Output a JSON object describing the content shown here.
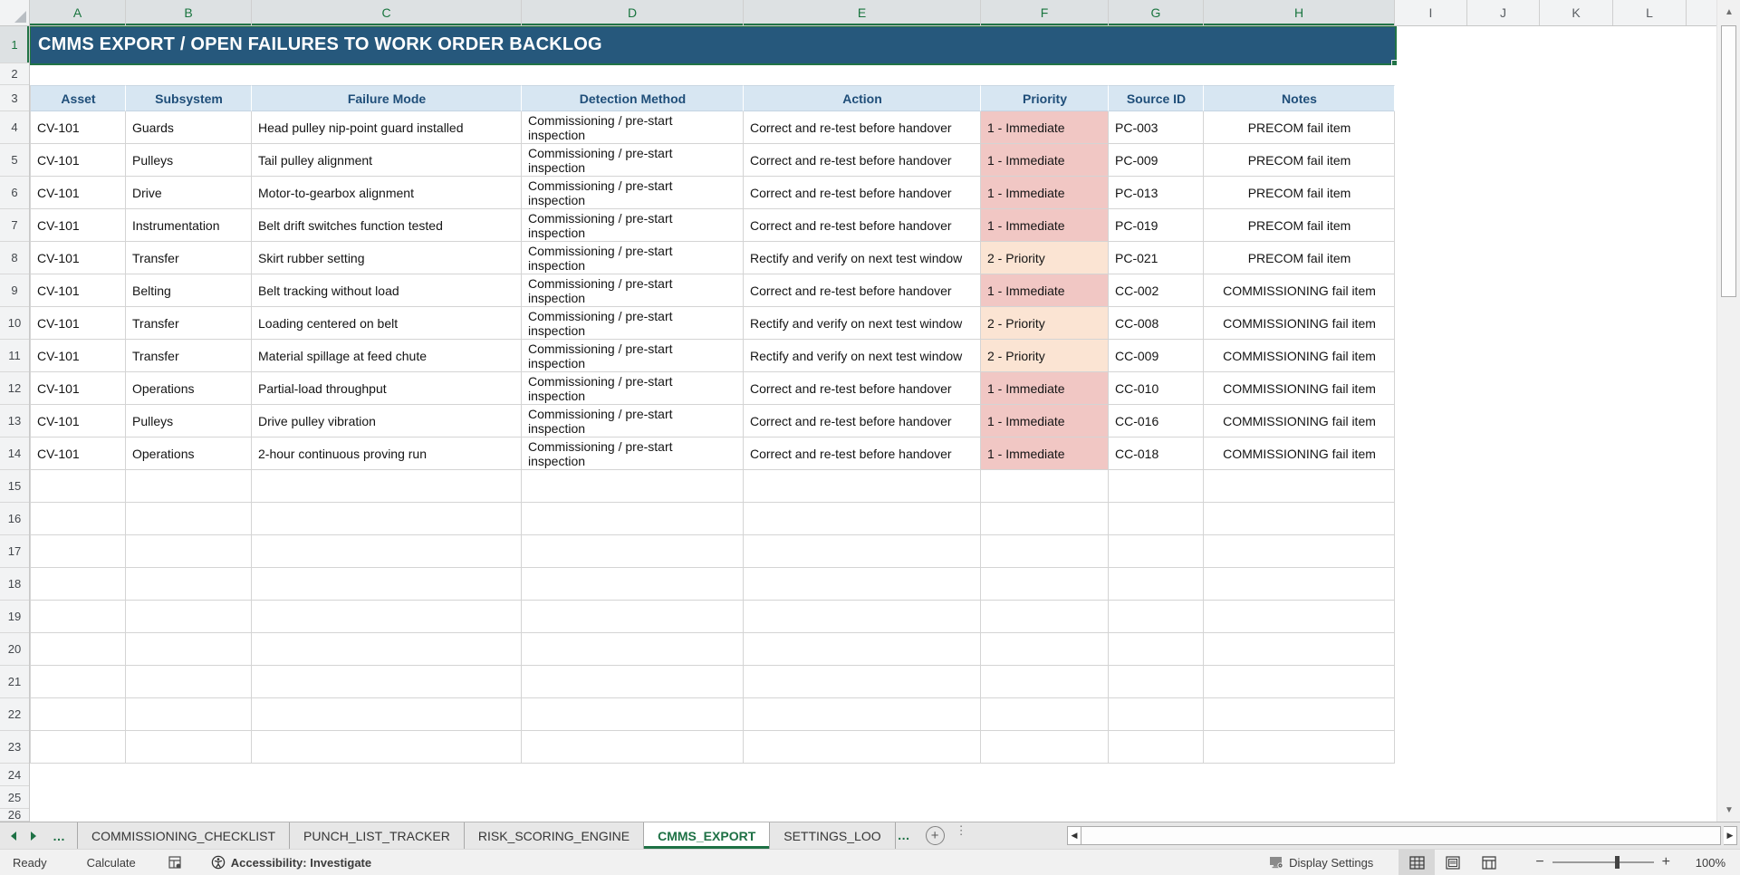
{
  "sheet": {
    "title_cell": "CMMS EXPORT / OPEN FAILURES TO WORK ORDER BACKLOG",
    "columns": [
      {
        "letter": "A",
        "selected": true
      },
      {
        "letter": "B",
        "selected": true
      },
      {
        "letter": "C",
        "selected": true
      },
      {
        "letter": "D",
        "selected": true
      },
      {
        "letter": "E",
        "selected": true
      },
      {
        "letter": "F",
        "selected": true
      },
      {
        "letter": "G",
        "selected": true
      },
      {
        "letter": "H",
        "selected": true
      },
      {
        "letter": "I",
        "selected": false
      },
      {
        "letter": "J",
        "selected": false
      },
      {
        "letter": "K",
        "selected": false
      },
      {
        "letter": "L",
        "selected": false
      }
    ],
    "row_count": 26,
    "selected_row": 1,
    "table": {
      "headers": [
        "Asset",
        "Subsystem",
        "Failure Mode",
        "Detection Method",
        "Action",
        "Priority",
        "Source ID",
        "Notes"
      ],
      "rows": [
        [
          "CV-101",
          "Guards",
          "Head pulley nip-point guard installed",
          "Commissioning / pre-start inspection",
          "Correct and re-test before handover",
          "1 - Immediate",
          "PC-003",
          "PRECOM fail item"
        ],
        [
          "CV-101",
          "Pulleys",
          "Tail pulley alignment",
          "Commissioning / pre-start inspection",
          "Correct and re-test before handover",
          "1 - Immediate",
          "PC-009",
          "PRECOM fail item"
        ],
        [
          "CV-101",
          "Drive",
          "Motor-to-gearbox alignment",
          "Commissioning / pre-start inspection",
          "Correct and re-test before handover",
          "1 - Immediate",
          "PC-013",
          "PRECOM fail item"
        ],
        [
          "CV-101",
          "Instrumentation",
          "Belt drift switches function tested",
          "Commissioning / pre-start inspection",
          "Correct and re-test before handover",
          "1 - Immediate",
          "PC-019",
          "PRECOM fail item"
        ],
        [
          "CV-101",
          "Transfer",
          "Skirt rubber setting",
          "Commissioning / pre-start inspection",
          "Rectify and verify on next test window",
          "2 - Priority",
          "PC-021",
          "PRECOM fail item"
        ],
        [
          "CV-101",
          "Belting",
          "Belt tracking without load",
          "Commissioning / pre-start inspection",
          "Correct and re-test before handover",
          "1 - Immediate",
          "CC-002",
          "COMMISSIONING fail item"
        ],
        [
          "CV-101",
          "Transfer",
          "Loading centered on belt",
          "Commissioning / pre-start inspection",
          "Rectify and verify on next test window",
          "2 - Priority",
          "CC-008",
          "COMMISSIONING fail item"
        ],
        [
          "CV-101",
          "Transfer",
          "Material spillage at feed chute",
          "Commissioning / pre-start inspection",
          "Rectify and verify on next test window",
          "2 - Priority",
          "CC-009",
          "COMMISSIONING fail item"
        ],
        [
          "CV-101",
          "Operations",
          "Partial-load throughput",
          "Commissioning / pre-start inspection",
          "Correct and re-test before handover",
          "1 - Immediate",
          "CC-010",
          "COMMISSIONING fail item"
        ],
        [
          "CV-101",
          "Pulleys",
          "Drive pulley vibration",
          "Commissioning / pre-start inspection",
          "Correct and re-test before handover",
          "1 - Immediate",
          "CC-016",
          "COMMISSIONING fail item"
        ],
        [
          "CV-101",
          "Operations",
          "2-hour continuous proving run",
          "Commissioning / pre-start inspection",
          "Correct and re-test before handover",
          "1 - Immediate",
          "CC-018",
          "COMMISSIONING fail item"
        ]
      ]
    },
    "priority_colors": {
      "1 - Immediate": "#F1C7C4",
      "2 - Priority": "#FBE4D3"
    },
    "colors": {
      "title_bg": "#26587C",
      "header_bg": "#D7E6F2",
      "header_text": "#1F4E79",
      "selection_green": "#217346"
    }
  },
  "tab_bar": {
    "nav_ellipsis": "…",
    "tabs": [
      {
        "label": "COMMISSIONING_CHECKLIST",
        "active": false
      },
      {
        "label": "PUNCH_LIST_TRACKER",
        "active": false
      },
      {
        "label": "RISK_SCORING_ENGINE",
        "active": false
      },
      {
        "label": "CMMS_EXPORT",
        "active": true
      },
      {
        "label": "SETTINGS_LOO",
        "active": false
      }
    ],
    "overflow_ellipsis": "…",
    "add_sheet_label": "+"
  },
  "status_bar": {
    "ready": "Ready",
    "calculate": "Calculate",
    "accessibility": "Accessibility: Investigate",
    "display_settings": "Display Settings",
    "zoom_level": "100%"
  }
}
